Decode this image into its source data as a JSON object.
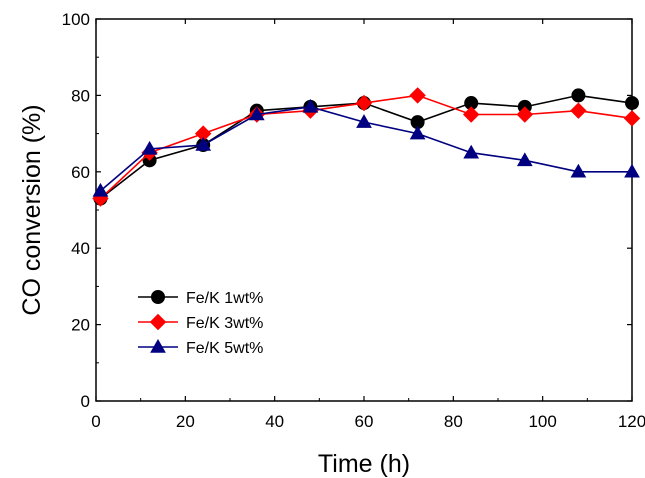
{
  "chart_data": {
    "type": "line",
    "title": "",
    "xlabel": "Time (h)",
    "ylabel": "CO conversion (%)",
    "xlim": [
      0,
      120
    ],
    "ylim": [
      0,
      100
    ],
    "xticks": [
      0,
      20,
      40,
      60,
      80,
      100,
      120
    ],
    "yticks": [
      0,
      20,
      40,
      60,
      80,
      100
    ],
    "grid": false,
    "legend_position": "bottom-left",
    "series": [
      {
        "name": "Fe/K 1wt%",
        "color": "#000000",
        "marker": "circle",
        "x": [
          1,
          12,
          24,
          36,
          48,
          60,
          72,
          84,
          96,
          108,
          120
        ],
        "y": [
          53,
          63,
          67,
          76,
          77,
          78,
          73,
          78,
          77,
          80,
          78
        ]
      },
      {
        "name": "Fe/K 3wt%",
        "color": "#ff0000",
        "marker": "diamond",
        "x": [
          1,
          12,
          24,
          36,
          48,
          60,
          72,
          84,
          96,
          108,
          120
        ],
        "y": [
          53,
          65,
          70,
          75,
          76,
          78,
          80,
          75,
          75,
          76,
          74
        ]
      },
      {
        "name": "Fe/K 5wt%",
        "color": "#000080",
        "marker": "triangle",
        "x": [
          1,
          12,
          24,
          36,
          48,
          60,
          72,
          84,
          96,
          108,
          120
        ],
        "y": [
          55,
          66,
          67,
          75,
          77,
          73,
          70,
          65,
          63,
          60,
          60
        ]
      }
    ]
  }
}
